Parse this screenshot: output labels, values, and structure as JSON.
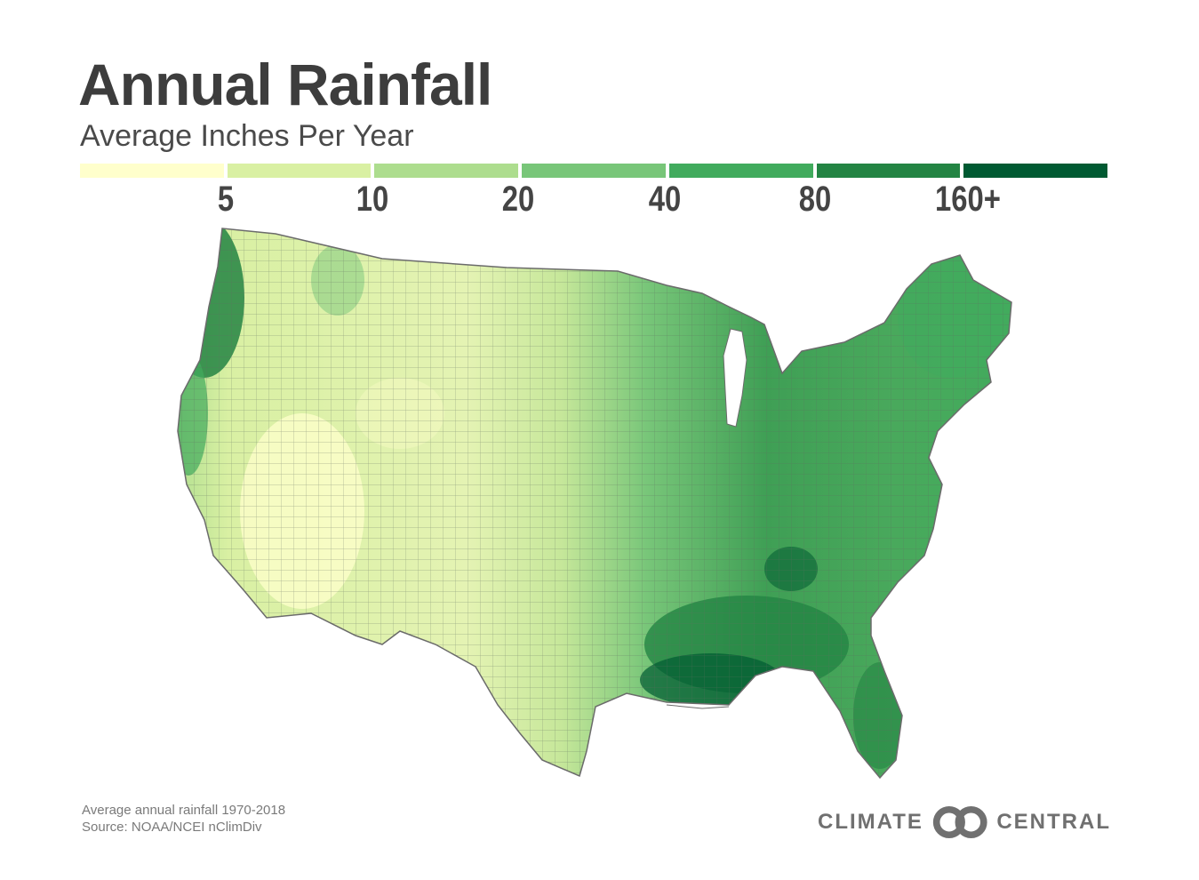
{
  "title": "Annual Rainfall",
  "subtitle": "Average Inches Per Year",
  "legend": {
    "colors": [
      "#ffffcc",
      "#d9f0a3",
      "#addd8e",
      "#78c679",
      "#41ab5d",
      "#238443",
      "#005a32"
    ],
    "ticks": [
      "5",
      "10",
      "20",
      "40",
      "80",
      "160+"
    ]
  },
  "footnote": {
    "line1": "Average annual rainfall 1970-2018",
    "line2": "Source: NOAA/NCEI nClimDiv"
  },
  "brand": {
    "left": "CLIMATE",
    "right": "CENTRAL",
    "color": "#707070"
  }
}
